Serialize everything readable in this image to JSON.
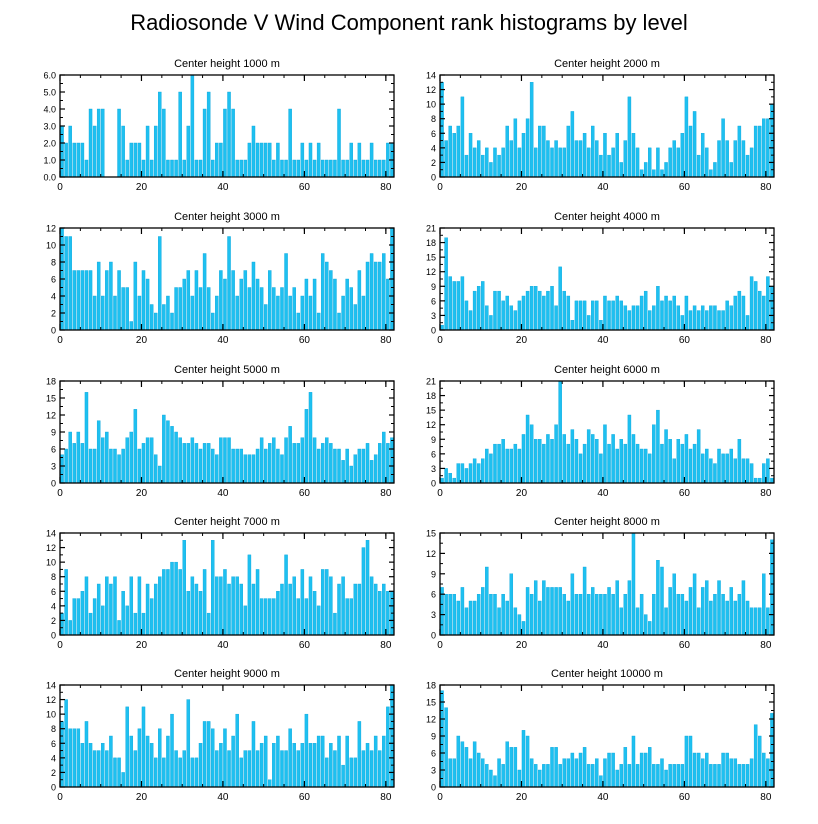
{
  "title": "Radiosonde V Wind Component rank histograms by level",
  "colors": {
    "bar": "#1ec0f0",
    "bar_edge": "#0aa6dc",
    "axis": "#000000",
    "background": "#ffffff"
  },
  "chart_data": [
    {
      "type": "bar",
      "title": "Center height 1000 m",
      "xlabel": "",
      "ylabel": "",
      "xlim": [
        0,
        82
      ],
      "xticks": [
        0,
        20,
        40,
        60,
        80
      ],
      "ylim": [
        0,
        6
      ],
      "yticks": [
        0,
        1,
        2,
        3,
        4,
        5,
        6
      ],
      "ytick_labels": [
        "0.0",
        "1.0",
        "2.0",
        "3.0",
        "4.0",
        "5.0",
        "6.0"
      ],
      "values": [
        3,
        2,
        3,
        2,
        2,
        2,
        1,
        4,
        3,
        4,
        4,
        0,
        0,
        0,
        4,
        3,
        1,
        2,
        2,
        2,
        1,
        3,
        1,
        3,
        5,
        4,
        1,
        1,
        1,
        5,
        1,
        3,
        6,
        1,
        1,
        4,
        5,
        1,
        2,
        2,
        4,
        5,
        4,
        1,
        1,
        1,
        2,
        3,
        2,
        2,
        2,
        2,
        1,
        2,
        1,
        1,
        4,
        1,
        1,
        2,
        1,
        2,
        1,
        2,
        1,
        1,
        1,
        1,
        4,
        1,
        1,
        2,
        1,
        2,
        1,
        1,
        2,
        1,
        1,
        1,
        2,
        2
      ]
    },
    {
      "type": "bar",
      "title": "Center height 2000 m",
      "xlabel": "",
      "ylabel": "",
      "xlim": [
        0,
        82
      ],
      "xticks": [
        0,
        20,
        40,
        60,
        80
      ],
      "ylim": [
        0,
        14
      ],
      "yticks": [
        0,
        2,
        4,
        6,
        8,
        10,
        12,
        14
      ],
      "ytick_labels": [
        "0",
        "2",
        "4",
        "6",
        "8",
        "10",
        "12",
        "14"
      ],
      "values": [
        13,
        5,
        7,
        6,
        7,
        11,
        3,
        6,
        4,
        5,
        3,
        4,
        2,
        4,
        3,
        4,
        7,
        5,
        8,
        4,
        6,
        8,
        13,
        4,
        7,
        7,
        5,
        4,
        5,
        4,
        4,
        7,
        9,
        5,
        5,
        6,
        4,
        7,
        5,
        3,
        6,
        3,
        4,
        6,
        2,
        5,
        11,
        6,
        4,
        1,
        2,
        4,
        1,
        4,
        1,
        2,
        4,
        5,
        4,
        6,
        11,
        7,
        9,
        3,
        6,
        4,
        1,
        2,
        5,
        8,
        5,
        2,
        5,
        7,
        5,
        3,
        4,
        7,
        7,
        8,
        8,
        10
      ]
    },
    {
      "type": "bar",
      "title": "Center height 3000 m",
      "xlabel": "",
      "ylabel": "",
      "xlim": [
        0,
        82
      ],
      "xticks": [
        0,
        20,
        40,
        60,
        80
      ],
      "ylim": [
        0,
        12
      ],
      "yticks": [
        0,
        2,
        4,
        6,
        8,
        10,
        12
      ],
      "ytick_labels": [
        "0",
        "2",
        "4",
        "6",
        "8",
        "10",
        "12"
      ],
      "values": [
        12,
        11,
        11,
        7,
        7,
        7,
        7,
        7,
        4,
        8,
        4,
        7,
        8,
        4,
        7,
        5,
        5,
        1,
        8,
        4,
        7,
        6,
        3,
        2,
        11,
        3,
        4,
        2,
        5,
        5,
        6,
        7,
        4,
        7,
        5,
        9,
        5,
        2,
        4,
        7,
        6,
        11,
        7,
        4,
        6,
        7,
        5,
        8,
        6,
        5,
        3,
        7,
        5,
        4,
        5,
        9,
        4,
        5,
        2,
        4,
        6,
        4,
        6,
        2,
        9,
        8,
        7,
        6,
        2,
        4,
        6,
        5,
        3,
        7,
        4,
        8,
        9,
        8,
        8,
        9,
        6,
        12
      ]
    },
    {
      "type": "bar",
      "title": "Center height 4000 m",
      "xlabel": "",
      "ylabel": "",
      "xlim": [
        0,
        82
      ],
      "xticks": [
        0,
        20,
        40,
        60,
        80
      ],
      "ylim": [
        0,
        21
      ],
      "yticks": [
        0,
        3,
        6,
        9,
        12,
        15,
        18,
        21
      ],
      "ytick_labels": [
        "0",
        "3",
        "6",
        "9",
        "12",
        "15",
        "18",
        "21"
      ],
      "values": [
        1,
        19,
        11,
        10,
        10,
        11,
        6,
        4,
        8,
        9,
        10,
        5,
        3,
        8,
        8,
        6,
        7,
        5,
        4,
        6,
        7,
        8,
        9,
        9,
        8,
        7,
        8,
        9,
        5,
        13,
        8,
        7,
        2,
        6,
        6,
        6,
        3,
        6,
        6,
        2,
        7,
        6,
        6,
        7,
        6,
        5,
        4,
        5,
        5,
        7,
        8,
        4,
        5,
        9,
        6,
        7,
        6,
        7,
        5,
        3,
        7,
        4,
        5,
        4,
        5,
        4,
        5,
        5,
        4,
        4,
        6,
        5,
        7,
        8,
        7,
        3,
        11,
        10,
        8,
        7,
        11,
        9
      ]
    },
    {
      "type": "bar",
      "title": "Center height 5000 m",
      "xlabel": "",
      "ylabel": "",
      "xlim": [
        0,
        82
      ],
      "xticks": [
        0,
        20,
        40,
        60,
        80
      ],
      "ylim": [
        0,
        18
      ],
      "yticks": [
        0,
        3,
        6,
        9,
        12,
        15,
        18
      ],
      "ytick_labels": [
        "0",
        "3",
        "6",
        "9",
        "12",
        "15",
        "18"
      ],
      "values": [
        5,
        6,
        9,
        7,
        9,
        7,
        16,
        6,
        6,
        11,
        8,
        9,
        6,
        6,
        5,
        6,
        8,
        9,
        13,
        6,
        7,
        8,
        8,
        5,
        3,
        12,
        11,
        10,
        9,
        8,
        7,
        7,
        8,
        7,
        6,
        7,
        7,
        6,
        5,
        8,
        8,
        8,
        6,
        6,
        6,
        5,
        5,
        5,
        6,
        8,
        6,
        7,
        8,
        6,
        5,
        8,
        10,
        7,
        7,
        8,
        13,
        16,
        8,
        6,
        7,
        8,
        7,
        6,
        6,
        4,
        6,
        3,
        5,
        6,
        6,
        7,
        4,
        5,
        7,
        9,
        7,
        8
      ]
    },
    {
      "type": "bar",
      "title": "Center height 6000 m",
      "xlabel": "",
      "ylabel": "",
      "xlim": [
        0,
        82
      ],
      "xticks": [
        0,
        20,
        40,
        60,
        80
      ],
      "ylim": [
        0,
        21
      ],
      "yticks": [
        0,
        3,
        6,
        9,
        12,
        15,
        18,
        21
      ],
      "ytick_labels": [
        "0",
        "3",
        "6",
        "9",
        "12",
        "15",
        "18",
        "21"
      ],
      "values": [
        1,
        3,
        2,
        1,
        4,
        4,
        3,
        4,
        5,
        4,
        5,
        7,
        6,
        8,
        8,
        9,
        7,
        7,
        8,
        7,
        10,
        14,
        12,
        9,
        9,
        8,
        10,
        9,
        12,
        21,
        10,
        8,
        11,
        9,
        6,
        8,
        11,
        10,
        9,
        6,
        12,
        8,
        10,
        7,
        9,
        8,
        14,
        10,
        8,
        7,
        7,
        6,
        12,
        15,
        8,
        11,
        9,
        5,
        9,
        8,
        10,
        7,
        8,
        11,
        6,
        7,
        5,
        4,
        7,
        6,
        6,
        7,
        5,
        9,
        5,
        5,
        4,
        1,
        1,
        4,
        5,
        1
      ]
    },
    {
      "type": "bar",
      "title": "Center height 7000 m",
      "xlabel": "",
      "ylabel": "",
      "xlim": [
        0,
        82
      ],
      "xticks": [
        0,
        20,
        40,
        60,
        80
      ],
      "ylim": [
        0,
        14
      ],
      "yticks": [
        0,
        2,
        4,
        6,
        8,
        10,
        12,
        14
      ],
      "ytick_labels": [
        "0",
        "2",
        "4",
        "6",
        "8",
        "10",
        "12",
        "14"
      ],
      "values": [
        3,
        9,
        2,
        5,
        5,
        6,
        8,
        3,
        5,
        7,
        4,
        8,
        7,
        8,
        2,
        6,
        4,
        8,
        3,
        8,
        3,
        7,
        5,
        7,
        8,
        9,
        9,
        10,
        10,
        9,
        13,
        6,
        8,
        7,
        6,
        9,
        3,
        13,
        8,
        8,
        9,
        7,
        8,
        8,
        7,
        4,
        11,
        7,
        9,
        5,
        5,
        5,
        5,
        6,
        7,
        11,
        7,
        8,
        5,
        9,
        5,
        8,
        6,
        4,
        9,
        9,
        8,
        3,
        7,
        8,
        5,
        5,
        7,
        7,
        12,
        13,
        8,
        7,
        6,
        7,
        6,
        6
      ]
    },
    {
      "type": "bar",
      "title": "Center height 8000 m",
      "xlabel": "",
      "ylabel": "",
      "xlim": [
        0,
        82
      ],
      "xticks": [
        0,
        20,
        40,
        60,
        80
      ],
      "ylim": [
        0,
        15
      ],
      "yticks": [
        0,
        3,
        6,
        9,
        12,
        15
      ],
      "ytick_labels": [
        "0",
        "3",
        "6",
        "9",
        "12",
        "15"
      ],
      "values": [
        7,
        6,
        6,
        6,
        5,
        7,
        4,
        5,
        5,
        6,
        7,
        10,
        6,
        6,
        4,
        6,
        5,
        9,
        4,
        3,
        2,
        7,
        6,
        8,
        5,
        8,
        7,
        7,
        7,
        7,
        6,
        5,
        9,
        6,
        6,
        10,
        6,
        7,
        6,
        6,
        6,
        7,
        6,
        8,
        4,
        6,
        8,
        15,
        4,
        6,
        3,
        2,
        6,
        11,
        10,
        4,
        7,
        9,
        6,
        6,
        5,
        7,
        9,
        4,
        7,
        8,
        5,
        6,
        8,
        6,
        5,
        7,
        5,
        6,
        8,
        5,
        4,
        4,
        4,
        9,
        4,
        14
      ]
    },
    {
      "type": "bar",
      "title": "Center height 9000 m",
      "xlabel": "",
      "ylabel": "",
      "xlim": [
        0,
        82
      ],
      "xticks": [
        0,
        20,
        40,
        60,
        80
      ],
      "ylim": [
        0,
        14
      ],
      "yticks": [
        0,
        2,
        4,
        6,
        8,
        10,
        12,
        14
      ],
      "ytick_labels": [
        "0",
        "2",
        "4",
        "6",
        "8",
        "10",
        "12",
        "14"
      ],
      "values": [
        9,
        12,
        8,
        8,
        8,
        6,
        9,
        6,
        5,
        5,
        6,
        5,
        7,
        4,
        4,
        2,
        11,
        7,
        5,
        8,
        11,
        7,
        6,
        4,
        8,
        4,
        7,
        10,
        5,
        4,
        5,
        12,
        4,
        4,
        6,
        9,
        9,
        8,
        5,
        6,
        8,
        5,
        7,
        10,
        4,
        5,
        5,
        9,
        5,
        6,
        7,
        1,
        6,
        7,
        5,
        5,
        8,
        6,
        5,
        6,
        10,
        6,
        6,
        7,
        7,
        4,
        6,
        5,
        7,
        3,
        7,
        4,
        4,
        9,
        5,
        6,
        5,
        7,
        5,
        7,
        11,
        14
      ]
    },
    {
      "type": "bar",
      "title": "Center height 10000 m",
      "xlabel": "",
      "ylabel": "",
      "xlim": [
        0,
        82
      ],
      "xticks": [
        0,
        20,
        40,
        60,
        80
      ],
      "ylim": [
        0,
        18
      ],
      "yticks": [
        0,
        3,
        6,
        9,
        12,
        15,
        18
      ],
      "ytick_labels": [
        "0",
        "3",
        "6",
        "9",
        "12",
        "15",
        "18"
      ],
      "values": [
        17,
        14,
        5,
        5,
        9,
        8,
        7,
        5,
        8,
        6,
        5,
        4,
        3,
        2,
        5,
        4,
        8,
        7,
        7,
        3,
        10,
        9,
        5,
        4,
        3,
        4,
        4,
        7,
        7,
        4,
        5,
        5,
        6,
        5,
        6,
        7,
        4,
        4,
        5,
        2,
        5,
        6,
        6,
        3,
        4,
        7,
        4,
        9,
        4,
        6,
        6,
        7,
        4,
        4,
        5,
        3,
        4,
        4,
        4,
        4,
        9,
        9,
        6,
        6,
        5,
        6,
        4,
        4,
        4,
        6,
        6,
        5,
        5,
        4,
        4,
        4,
        5,
        11,
        9,
        6,
        5,
        13
      ]
    }
  ]
}
